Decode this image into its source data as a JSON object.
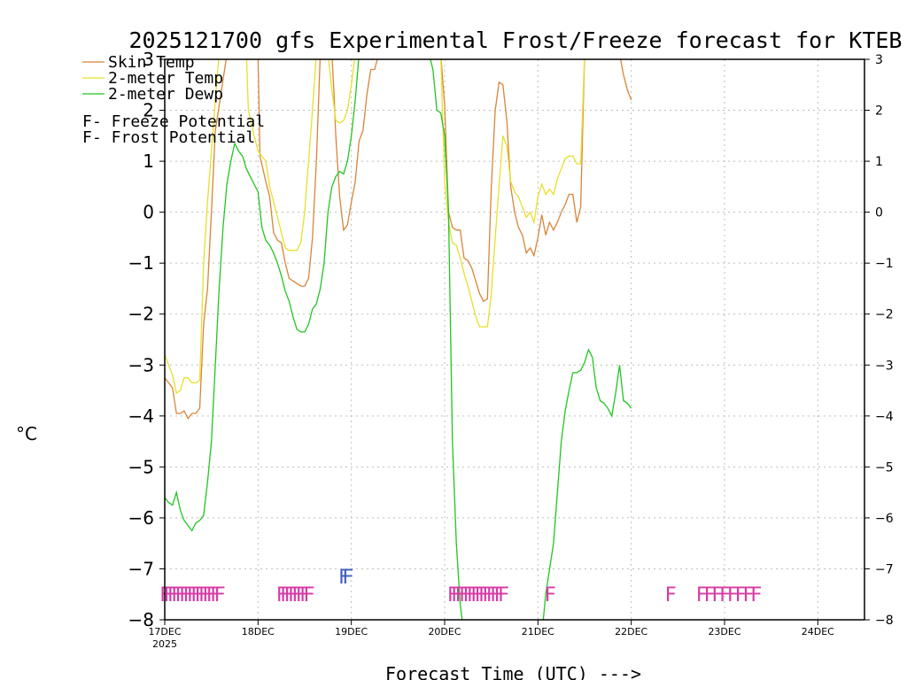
{
  "chart_data": {
    "type": "line",
    "title": "2025121700 gfs Experimental Frost/Freeze forecast for KTEB",
    "xlabel": "Forecast Time (UTC) --->",
    "ylabel": "°C",
    "ylim": [
      -8,
      3
    ],
    "yticks": [
      -8,
      -7,
      -6,
      -5,
      -4,
      -3,
      -2,
      -1,
      0,
      1,
      2,
      3
    ],
    "xlim": [
      0,
      180
    ],
    "x_units": "hours from 2025-12-17 00 UTC",
    "xticks": [
      {
        "x": 0,
        "label": "17DEC",
        "sublabel": "2025"
      },
      {
        "x": 24,
        "label": "18DEC"
      },
      {
        "x": 48,
        "label": "19DEC"
      },
      {
        "x": 72,
        "label": "20DEC"
      },
      {
        "x": 96,
        "label": "21DEC"
      },
      {
        "x": 120,
        "label": "22DEC"
      },
      {
        "x": 144,
        "label": "23DEC"
      },
      {
        "x": 168,
        "label": "24DEC"
      }
    ],
    "grid": true,
    "legend_position": "top-left",
    "series": [
      {
        "name": "Skin Temp",
        "color": "#d8853a",
        "points": [
          [
            0,
            -3.25
          ],
          [
            1,
            -3.35
          ],
          [
            2,
            -3.45
          ],
          [
            3,
            -3.95
          ],
          [
            4,
            -3.95
          ],
          [
            5,
            -3.9
          ],
          [
            6,
            -4.05
          ],
          [
            7,
            -3.95
          ],
          [
            8,
            -3.95
          ],
          [
            9,
            -3.85
          ],
          [
            10,
            -2.2
          ],
          [
            11,
            -1.5
          ],
          [
            12,
            0.0
          ],
          [
            13,
            1.6
          ],
          [
            16,
            3.1
          ],
          [
            24,
            3.1
          ],
          [
            24.5,
            1.1
          ],
          [
            26,
            0.6
          ],
          [
            27,
            0.3
          ],
          [
            28,
            -0.4
          ],
          [
            29,
            -0.55
          ],
          [
            30,
            -0.6
          ],
          [
            31,
            -1.0
          ],
          [
            32,
            -1.3
          ],
          [
            33,
            -1.35
          ],
          [
            34,
            -1.4
          ],
          [
            35,
            -1.45
          ],
          [
            36,
            -1.45
          ],
          [
            37,
            -1.3
          ],
          [
            38,
            -0.5
          ],
          [
            39,
            1.0
          ],
          [
            40,
            3.1
          ],
          [
            43,
            3.1
          ],
          [
            43.5,
            2.4
          ],
          [
            44,
            1.5
          ],
          [
            45,
            0.3
          ],
          [
            46,
            -0.35
          ],
          [
            47,
            -0.25
          ],
          [
            48,
            0.2
          ],
          [
            49,
            0.6
          ],
          [
            50,
            1.4
          ],
          [
            51,
            1.6
          ],
          [
            52,
            2.3
          ],
          [
            53,
            2.8
          ],
          [
            54,
            2.8
          ],
          [
            55,
            3.1
          ],
          [
            71,
            3.1
          ],
          [
            72,
            2.1
          ],
          [
            73,
            0.0
          ],
          [
            74,
            -0.3
          ],
          [
            75,
            -0.35
          ],
          [
            76,
            -0.35
          ],
          [
            77,
            -0.9
          ],
          [
            78,
            -0.95
          ],
          [
            79,
            -1.1
          ],
          [
            80,
            -1.35
          ],
          [
            81,
            -1.6
          ],
          [
            82,
            -1.75
          ],
          [
            83,
            -1.7
          ],
          [
            84,
            0.5
          ],
          [
            85,
            2.0
          ],
          [
            86,
            2.55
          ],
          [
            87,
            2.5
          ],
          [
            88,
            1.8
          ],
          [
            89,
            0.5
          ],
          [
            90,
            0.0
          ],
          [
            91,
            -0.3
          ],
          [
            92,
            -0.45
          ],
          [
            93,
            -0.8
          ],
          [
            94,
            -0.7
          ],
          [
            95,
            -0.85
          ],
          [
            96,
            -0.5
          ],
          [
            97,
            -0.05
          ],
          [
            98,
            -0.45
          ],
          [
            99,
            -0.2
          ],
          [
            100,
            -0.35
          ],
          [
            101,
            -0.2
          ],
          [
            102,
            0.0
          ],
          [
            103,
            0.15
          ],
          [
            104,
            0.35
          ],
          [
            105,
            0.35
          ],
          [
            106,
            -0.2
          ],
          [
            107,
            0.1
          ],
          [
            108,
            3.1
          ],
          [
            117,
            3.1
          ],
          [
            118,
            2.7
          ],
          [
            119,
            2.4
          ],
          [
            120,
            2.2
          ]
        ]
      },
      {
        "name": "2-meter Temp",
        "color": "#e6e02a",
        "points": [
          [
            0,
            -2.8
          ],
          [
            1,
            -3.0
          ],
          [
            2,
            -3.2
          ],
          [
            3,
            -3.55
          ],
          [
            4,
            -3.5
          ],
          [
            5,
            -3.25
          ],
          [
            6,
            -3.25
          ],
          [
            7,
            -3.35
          ],
          [
            8,
            -3.35
          ],
          [
            9,
            -3.3
          ],
          [
            10,
            -1.0
          ],
          [
            11,
            0.2
          ],
          [
            12,
            1.2
          ],
          [
            13,
            2.2
          ],
          [
            14,
            3.1
          ],
          [
            21,
            3.1
          ],
          [
            21.5,
            2.0
          ],
          [
            23,
            1.5
          ],
          [
            24,
            1.2
          ],
          [
            26,
            1.0
          ],
          [
            27,
            0.5
          ],
          [
            28,
            0.2
          ],
          [
            29,
            -0.1
          ],
          [
            30,
            -0.4
          ],
          [
            31,
            -0.7
          ],
          [
            32,
            -0.75
          ],
          [
            33,
            -0.75
          ],
          [
            34,
            -0.75
          ],
          [
            35,
            -0.6
          ],
          [
            36,
            0.0
          ],
          [
            37,
            1.0
          ],
          [
            38,
            2.0
          ],
          [
            39,
            3.1
          ],
          [
            42,
            3.1
          ],
          [
            43,
            2.4
          ],
          [
            44,
            1.8
          ],
          [
            45,
            1.75
          ],
          [
            46,
            1.8
          ],
          [
            47,
            2.0
          ],
          [
            48,
            2.5
          ],
          [
            49,
            3.1
          ],
          [
            71,
            3.1
          ],
          [
            72,
            0.6
          ],
          [
            73,
            -0.2
          ],
          [
            74,
            -0.6
          ],
          [
            75,
            -0.65
          ],
          [
            76,
            -0.9
          ],
          [
            77,
            -1.2
          ],
          [
            78,
            -1.45
          ],
          [
            79,
            -1.75
          ],
          [
            80,
            -2.05
          ],
          [
            81,
            -2.25
          ],
          [
            82,
            -2.25
          ],
          [
            83,
            -2.25
          ],
          [
            84,
            -1.6
          ],
          [
            85,
            -0.5
          ],
          [
            86,
            0.5
          ],
          [
            87,
            1.5
          ],
          [
            88,
            1.3
          ],
          [
            89,
            0.6
          ],
          [
            90,
            0.4
          ],
          [
            91,
            0.3
          ],
          [
            92,
            0.1
          ],
          [
            93,
            -0.1
          ],
          [
            94,
            0.0
          ],
          [
            95,
            -0.2
          ],
          [
            96,
            0.3
          ],
          [
            97,
            0.55
          ],
          [
            98,
            0.35
          ],
          [
            99,
            0.45
          ],
          [
            100,
            0.35
          ],
          [
            101,
            0.65
          ],
          [
            102,
            0.85
          ],
          [
            103,
            1.05
          ],
          [
            104,
            1.1
          ],
          [
            105,
            1.1
          ],
          [
            106,
            0.95
          ],
          [
            107,
            0.95
          ],
          [
            108,
            3.1
          ]
        ]
      },
      {
        "name": "2-meter Dewp",
        "color": "#22c522",
        "points": [
          [
            0,
            -5.6
          ],
          [
            1,
            -5.7
          ],
          [
            2,
            -5.75
          ],
          [
            3,
            -5.5
          ],
          [
            4,
            -5.85
          ],
          [
            5,
            -6.05
          ],
          [
            6,
            -6.15
          ],
          [
            7,
            -6.25
          ],
          [
            8,
            -6.1
          ],
          [
            9,
            -6.05
          ],
          [
            10,
            -5.95
          ],
          [
            11,
            -5.3
          ],
          [
            12,
            -4.5
          ],
          [
            13,
            -3.0
          ],
          [
            14,
            -1.5
          ],
          [
            15,
            -0.3
          ],
          [
            16,
            0.55
          ],
          [
            17,
            1.0
          ],
          [
            18,
            1.35
          ],
          [
            19,
            1.2
          ],
          [
            20,
            1.1
          ],
          [
            21,
            0.85
          ],
          [
            22,
            0.7
          ],
          [
            23,
            0.55
          ],
          [
            24,
            0.4
          ],
          [
            25,
            -0.3
          ],
          [
            26,
            -0.55
          ],
          [
            27,
            -0.65
          ],
          [
            28,
            -0.8
          ],
          [
            29,
            -1.0
          ],
          [
            30,
            -1.25
          ],
          [
            31,
            -1.55
          ],
          [
            32,
            -1.75
          ],
          [
            33,
            -2.05
          ],
          [
            34,
            -2.3
          ],
          [
            35,
            -2.35
          ],
          [
            36,
            -2.35
          ],
          [
            37,
            -2.2
          ],
          [
            38,
            -1.9
          ],
          [
            39,
            -1.8
          ],
          [
            40,
            -1.5
          ],
          [
            41,
            -1.0
          ],
          [
            42,
            0.0
          ],
          [
            43,
            0.5
          ],
          [
            44,
            0.7
          ],
          [
            45,
            0.8
          ],
          [
            46,
            0.75
          ],
          [
            47,
            1.0
          ],
          [
            48,
            1.5
          ],
          [
            49,
            2.2
          ],
          [
            50,
            3.1
          ],
          [
            68,
            3.1
          ],
          [
            69,
            2.8
          ],
          [
            70,
            2.0
          ],
          [
            71,
            1.95
          ],
          [
            72,
            1.5
          ],
          [
            73,
            0.0
          ],
          [
            74,
            -4.5
          ],
          [
            75,
            -6.5
          ],
          [
            76,
            -7.7
          ],
          [
            77,
            -8.3
          ],
          [
            97,
            -8.3
          ],
          [
            98,
            -7.5
          ],
          [
            99,
            -7.0
          ],
          [
            100,
            -6.5
          ],
          [
            101,
            -5.5
          ],
          [
            102,
            -4.5
          ],
          [
            103,
            -3.9
          ],
          [
            104,
            -3.5
          ],
          [
            105,
            -3.15
          ],
          [
            106,
            -3.15
          ],
          [
            107,
            -3.1
          ],
          [
            108,
            -2.95
          ],
          [
            109,
            -2.7
          ],
          [
            110,
            -2.85
          ],
          [
            111,
            -3.45
          ],
          [
            112,
            -3.7
          ],
          [
            113,
            -3.75
          ],
          [
            114,
            -3.85
          ],
          [
            115,
            -4.0
          ],
          [
            116,
            -3.55
          ],
          [
            117,
            -3.0
          ],
          [
            118,
            -3.7
          ],
          [
            119,
            -3.75
          ],
          [
            120,
            -3.85
          ]
        ]
      }
    ],
    "legend": [
      {
        "label": "Skin Temp",
        "color": "#d8853a"
      },
      {
        "label": "2-meter Temp",
        "color": "#e6e02a"
      },
      {
        "label": "2-meter Dewp",
        "color": "#22c522"
      }
    ],
    "potential_legend": [
      {
        "letter": "F",
        "text": " - Freeze Potential",
        "color": "#d63aa5"
      },
      {
        "letter": "F",
        "text": " - Frost Potential",
        "color": "#3f5fbf"
      }
    ],
    "freeze_markers": {
      "letter": "F",
      "color": "#d63aa5",
      "level": -7.5,
      "hours": [
        0,
        1,
        2,
        3,
        4,
        5,
        6,
        7,
        8,
        9,
        10,
        11,
        12,
        13,
        14,
        30,
        31,
        32,
        33,
        34,
        35,
        36,
        37,
        74,
        75,
        76,
        77,
        78,
        79,
        80,
        81,
        82,
        83,
        84,
        85,
        86,
        87,
        99,
        130,
        138,
        140,
        142,
        144,
        146,
        148,
        150,
        152
      ]
    },
    "frost_markers": {
      "letter": "F",
      "color": "#3f5fbf",
      "level": -7.15,
      "hours": [
        46,
        47
      ]
    }
  }
}
